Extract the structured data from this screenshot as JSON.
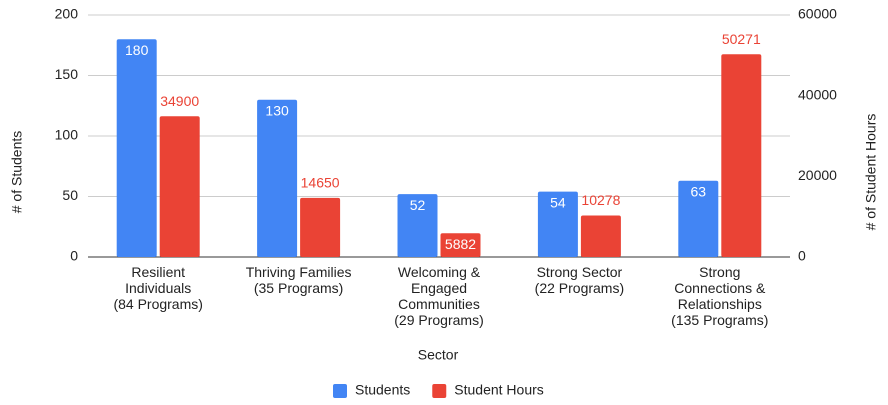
{
  "chart_data": {
    "type": "bar",
    "categories": [
      [
        "Resilient",
        "Individuals",
        "(84 Programs)"
      ],
      [
        "Thriving Families",
        "(35 Programs)"
      ],
      [
        "Welcoming &",
        "Engaged",
        "Communities",
        "(29 Programs)"
      ],
      [
        "Strong Sector",
        "(22 Programs)"
      ],
      [
        "Strong",
        "Connections &",
        "Relationships",
        "(135 Programs)"
      ]
    ],
    "series": [
      {
        "name": "Students",
        "color": "#4285f4",
        "values": [
          180,
          130,
          52,
          54,
          63
        ]
      },
      {
        "name": "Student Hours",
        "color": "#ea4335",
        "axis": "y2",
        "values": [
          34900,
          14650,
          5882,
          10278,
          50271
        ]
      }
    ],
    "x_label": "Sector",
    "y_label": "# of Students",
    "y2_label": "# of Student Hours",
    "ylim": [
      0,
      200
    ],
    "yticks": [
      0,
      50,
      100,
      150,
      200
    ],
    "y2lim": [
      0,
      60000
    ],
    "y2ticks": [
      0,
      20000,
      40000,
      60000
    ],
    "grid": true,
    "legend": "bottom"
  }
}
